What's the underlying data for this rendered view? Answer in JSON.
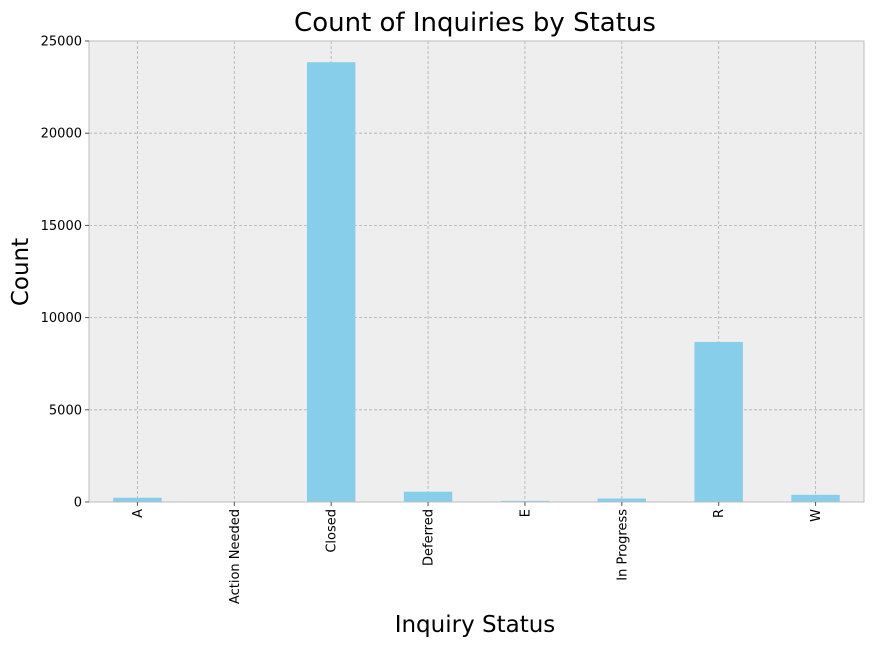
{
  "chart_data": {
    "type": "bar",
    "title": "Count of Inquiries by Status",
    "xlabel": "Inquiry Status",
    "ylabel": "Count",
    "categories": [
      "A",
      "Action Needed",
      "Closed",
      "Deferred",
      "E",
      "In Progress",
      "R",
      "W"
    ],
    "values": [
      230,
      10,
      23850,
      560,
      60,
      190,
      8680,
      390
    ],
    "ylim": [
      0,
      25000
    ],
    "yticks": [
      0,
      5000,
      10000,
      15000,
      20000,
      25000
    ],
    "grid": true,
    "colors": {
      "bar": "#87ceeb",
      "plot_background": "#eeeeee",
      "frame": "#bcbcbc"
    }
  }
}
